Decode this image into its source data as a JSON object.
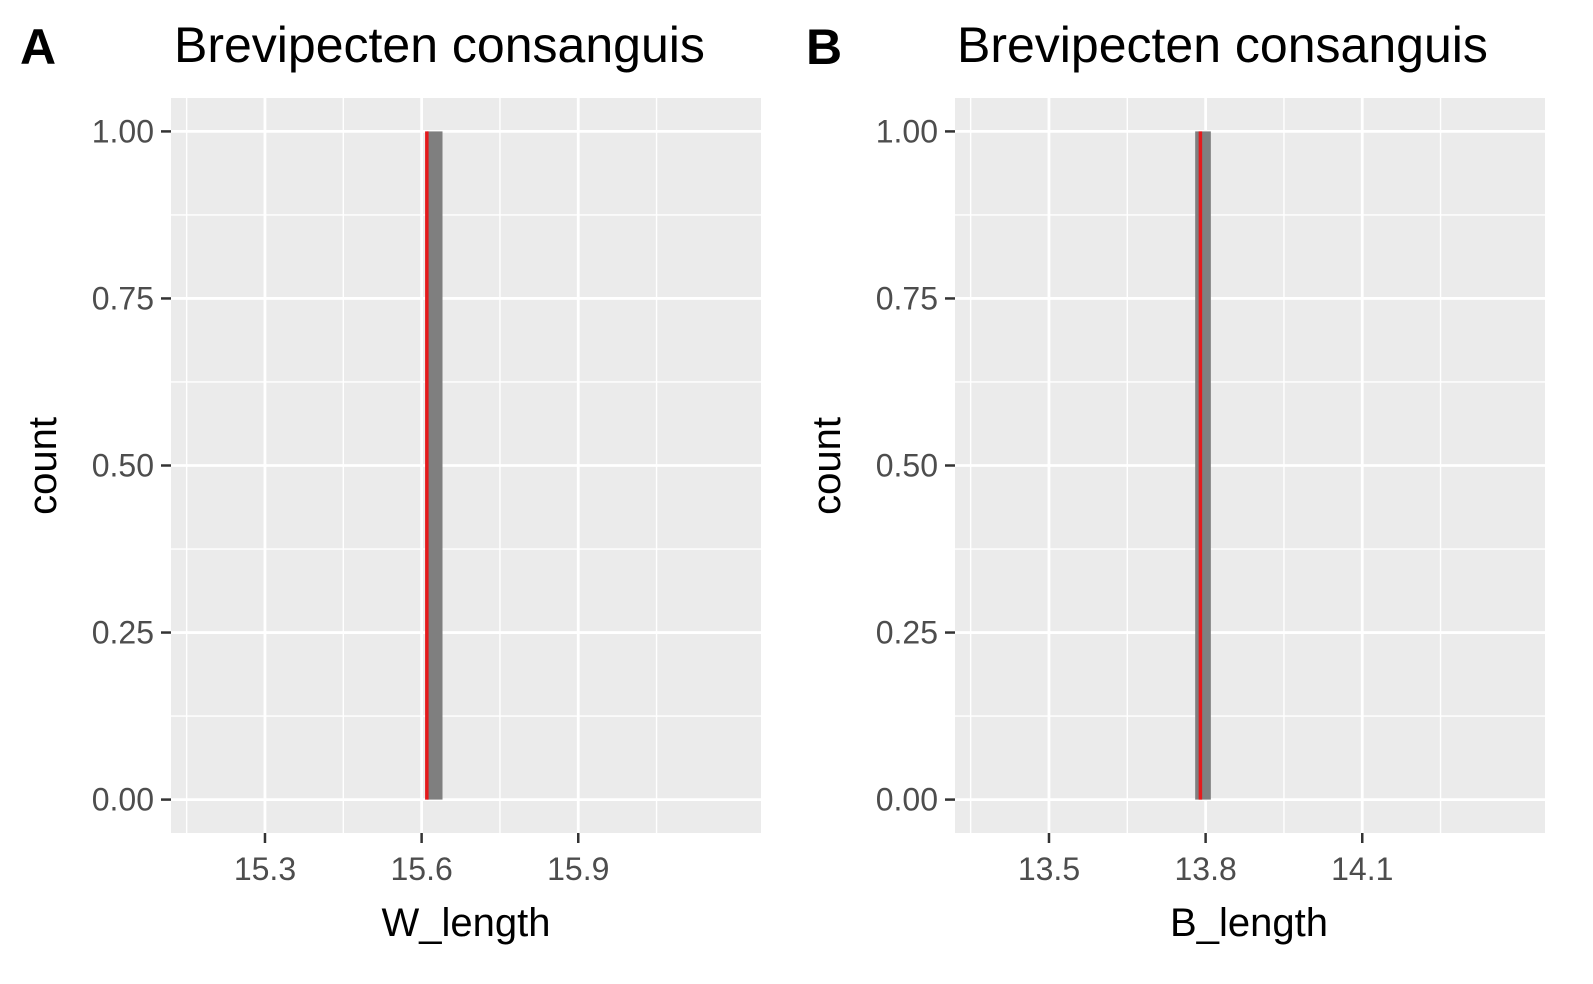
{
  "chart_data": [
    {
      "type": "bar",
      "panel_label": "A",
      "title": "Brevipecten consanguis",
      "xlabel": "W_length",
      "ylabel": "count",
      "xlim": [
        15.12,
        16.25
      ],
      "ylim": [
        -0.05,
        1.05
      ],
      "x_ticks": [
        15.3,
        15.6,
        15.9
      ],
      "x_tick_labels": [
        "15.3",
        "15.6",
        "15.9"
      ],
      "x_minor": [
        15.15,
        15.45,
        15.75,
        16.05
      ],
      "y_ticks": [
        0,
        0.25,
        0.5,
        0.75,
        1.0
      ],
      "y_tick_labels": [
        "0.00",
        "0.25",
        "0.50",
        "0.75",
        "1.00"
      ],
      "y_minor": [
        0.125,
        0.375,
        0.625,
        0.875
      ],
      "bars": [
        {
          "x_min": 15.61,
          "x_max": 15.64,
          "count": 1
        }
      ],
      "vline": {
        "x": 15.61,
        "color": "#e41a1c"
      },
      "grid": true,
      "colors": {
        "bar": "#7f7f7f",
        "panel_bg": "#ebebeb",
        "grid": "#ffffff"
      }
    },
    {
      "type": "bar",
      "panel_label": "B",
      "title": "Brevipecten consanguis",
      "xlabel": "B_length",
      "ylabel": "count",
      "xlim": [
        13.32,
        14.45
      ],
      "ylim": [
        -0.05,
        1.05
      ],
      "x_ticks": [
        13.5,
        13.8,
        14.1
      ],
      "x_tick_labels": [
        "13.5",
        "13.8",
        "14.1"
      ],
      "x_minor": [
        13.35,
        13.65,
        13.95,
        14.25
      ],
      "y_ticks": [
        0,
        0.25,
        0.5,
        0.75,
        1.0
      ],
      "y_tick_labels": [
        "0.00",
        "0.25",
        "0.50",
        "0.75",
        "1.00"
      ],
      "y_minor": [
        0.125,
        0.375,
        0.625,
        0.875
      ],
      "bars": [
        {
          "x_min": 13.78,
          "x_max": 13.81,
          "count": 1
        }
      ],
      "vline": {
        "x": 13.79,
        "color": "#e41a1c"
      },
      "grid": true,
      "colors": {
        "bar": "#7f7f7f",
        "panel_bg": "#ebebeb",
        "grid": "#ffffff"
      }
    }
  ]
}
